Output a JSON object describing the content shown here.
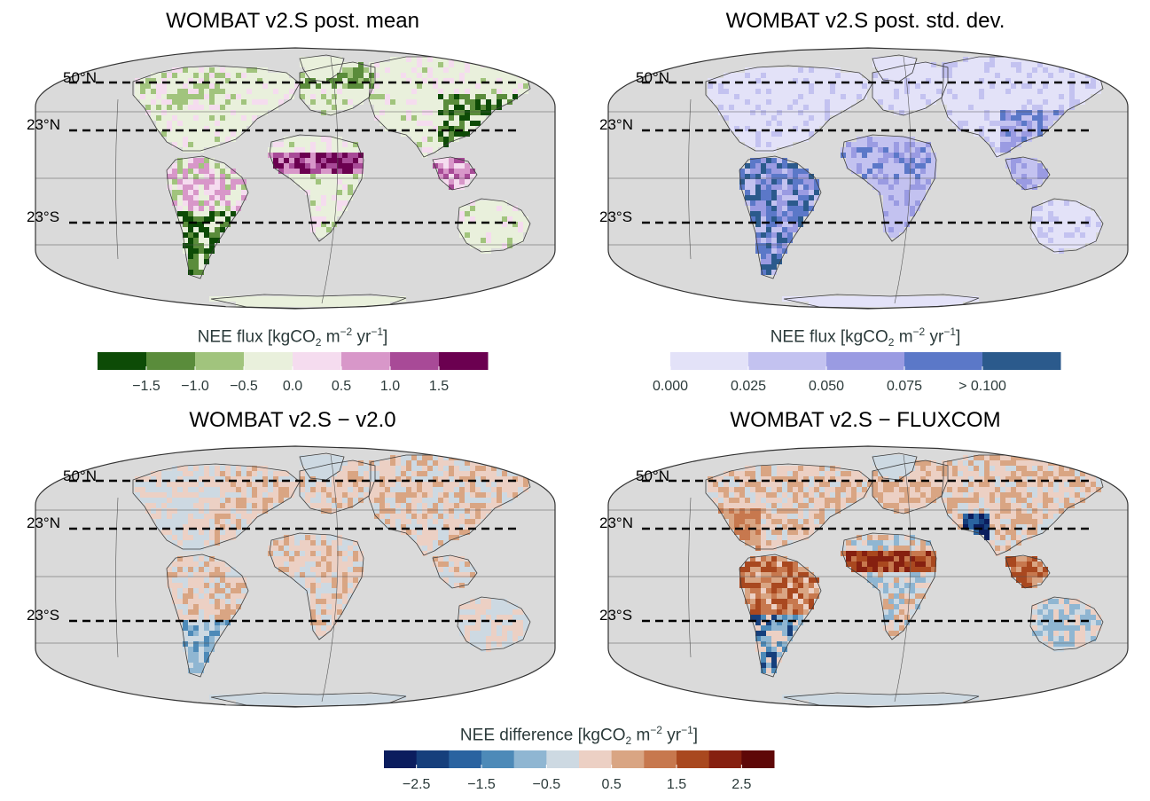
{
  "panels": [
    {
      "title": "WOMBAT v2.S post. mean",
      "palette": "mean"
    },
    {
      "title": "WOMBAT v2.S post. std. dev.",
      "palette": "sd"
    },
    {
      "title": "WOMBAT v2.S − v2.0",
      "palette": "diff_small"
    },
    {
      "title": "WOMBAT v2.S − FLUXCOM",
      "palette": "diff_large"
    }
  ],
  "lat_lines": [
    "50°N",
    "23°N",
    "23°S"
  ],
  "colorbars": {
    "mean": {
      "title_parts": {
        "a": "NEE flux [kgCO",
        "sub": "2",
        "b": " m",
        "sup1": "−2",
        "c": " yr",
        "sup2": "−1",
        "d": "]"
      },
      "colors": [
        "#0d4b06",
        "#5a8c3b",
        "#a1c47d",
        "#e9f0dc",
        "#f5dcef",
        "#d897c9",
        "#a84a97",
        "#6b0050"
      ],
      "ticks": [
        "−1.5",
        "−1.0",
        "−0.5",
        "0.0",
        "0.5",
        "1.0",
        "1.5"
      ]
    },
    "sd": {
      "title_parts": {
        "a": "NEE flux [kgCO",
        "sub": "2",
        "b": " m",
        "sup1": "−2",
        "c": " yr",
        "sup2": "−1",
        "d": "]"
      },
      "colors": [
        "#e3e2f8",
        "#c3c2f0",
        "#9a9be2",
        "#5b78c8",
        "#2b5a8c"
      ],
      "ticks": [
        "0.000",
        "0.025",
        "0.050",
        "0.075",
        "> 0.100"
      ]
    },
    "diff": {
      "title_parts": {
        "a": "NEE difference [kgCO",
        "sub": "2",
        "b": " m",
        "sup1": "−2",
        "c": " yr",
        "sup2": "−1",
        "d": "]"
      },
      "colors": [
        "#0b1d5e",
        "#163f7c",
        "#2a63a0",
        "#4d8ab8",
        "#8fb6d2",
        "#cdd9e2",
        "#ecd0c4",
        "#d9a583",
        "#c7784e",
        "#a9481f",
        "#862010",
        "#5e0808"
      ],
      "ticks": [
        "−2.5",
        "−1.5",
        "−0.5",
        "0.5",
        "1.5",
        "2.5"
      ]
    }
  },
  "colors": {
    "ocean": "#dadada",
    "outline": "#3c3c3c",
    "dash": "#000000"
  }
}
